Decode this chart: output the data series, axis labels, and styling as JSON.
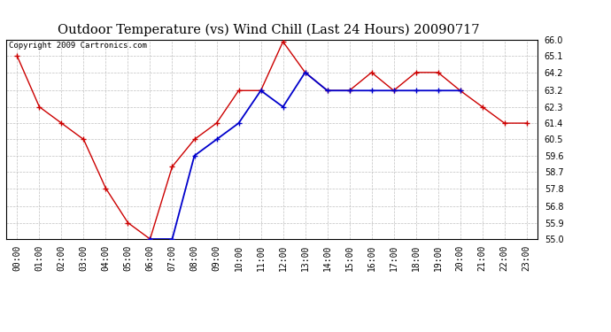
{
  "title": "Outdoor Temperature (vs) Wind Chill (Last 24 Hours) 20090717",
  "copyright": "Copyright 2009 Cartronics.com",
  "x_labels": [
    "00:00",
    "01:00",
    "02:00",
    "03:00",
    "04:00",
    "05:00",
    "06:00",
    "07:00",
    "08:00",
    "09:00",
    "10:00",
    "11:00",
    "12:00",
    "13:00",
    "14:00",
    "15:00",
    "16:00",
    "17:00",
    "18:00",
    "19:00",
    "20:00",
    "21:00",
    "22:00",
    "23:00"
  ],
  "ylim": [
    55.0,
    66.0
  ],
  "yticks": [
    55.0,
    55.9,
    56.8,
    57.8,
    58.7,
    59.6,
    60.5,
    61.4,
    62.3,
    63.2,
    64.2,
    65.1,
    66.0
  ],
  "temp_color": "#cc0000",
  "wind_color": "#0000cc",
  "bg_color": "#ffffff",
  "grid_color": "#c0c0c0",
  "temp_data": [
    65.1,
    62.3,
    61.4,
    60.5,
    57.8,
    55.9,
    55.0,
    59.0,
    60.5,
    61.4,
    63.2,
    63.2,
    65.9,
    64.2,
    63.2,
    63.2,
    64.2,
    63.2,
    64.2,
    64.2,
    63.2,
    62.3,
    61.4,
    61.4
  ],
  "wind_data": [
    null,
    null,
    null,
    null,
    null,
    null,
    55.0,
    55.0,
    59.6,
    60.5,
    61.4,
    63.2,
    62.3,
    64.2,
    63.2,
    63.2,
    63.2,
    63.2,
    63.2,
    63.2,
    63.2,
    null,
    null,
    null
  ],
  "title_fontsize": 10.5,
  "copyright_fontsize": 6.5,
  "tick_fontsize": 7,
  "marker_size": 4,
  "linewidth": 1.0
}
